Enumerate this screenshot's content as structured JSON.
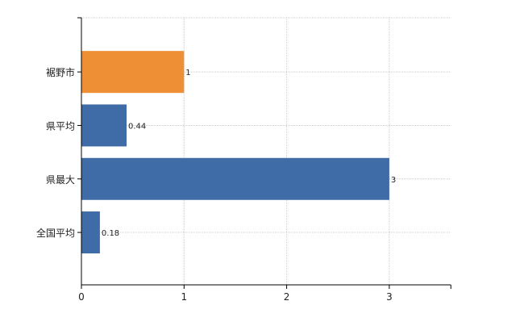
{
  "chart_data": {
    "type": "bar",
    "orientation": "horizontal",
    "categories": [
      "裾野市",
      "県平均",
      "県最大",
      "全国平均"
    ],
    "values": [
      1,
      0.44,
      3,
      0.18
    ],
    "data_labels": [
      "1",
      "0.44",
      "3",
      "0.18"
    ],
    "bar_colors": [
      "#ee8f36",
      "#3f6ca6",
      "#3f6ca6",
      "#3f6ca6"
    ],
    "xlim": [
      0,
      3.6
    ],
    "xticks": [
      0,
      1,
      2,
      3
    ],
    "title": "",
    "xlabel": "",
    "ylabel": "",
    "grid": true,
    "legend": "none"
  }
}
